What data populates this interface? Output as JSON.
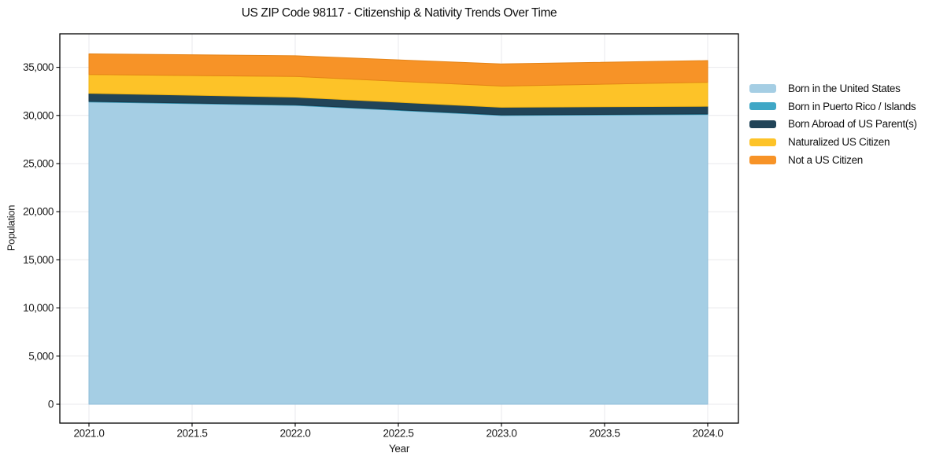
{
  "figure": {
    "title": "US ZIP Code 98117 - Citizenship & Nativity Trends Over Time",
    "xlabel": "Year",
    "ylabel": "Population"
  },
  "chart_data": {
    "type": "area",
    "stacked": true,
    "title": "US ZIP Code 98117 - Citizenship & Nativity Trends Over Time",
    "xlabel": "Year",
    "ylabel": "Population",
    "x": [
      2021,
      2022,
      2023,
      2024
    ],
    "series": [
      {
        "name": "Born in the United States",
        "values": [
          31400,
          31050,
          30000,
          30100
        ],
        "color": "#a5cee4",
        "edge_color": "#8ebcd8"
      },
      {
        "name": "Born in Puerto Rico / Islands",
        "values": [
          60,
          60,
          60,
          60
        ],
        "color": "#3fa7c6",
        "edge_color": "#3596b4"
      },
      {
        "name": "Born Abroad of US Parent(s)",
        "values": [
          840,
          790,
          790,
          790
        ],
        "color": "#214458",
        "edge_color": "#1a3849"
      },
      {
        "name": "Naturalized US Citizen",
        "values": [
          1950,
          2150,
          2200,
          2500
        ],
        "color": "#fdc328",
        "edge_color": "#f0b413"
      },
      {
        "name": "Not a US Citizen",
        "values": [
          2150,
          2150,
          2300,
          2250
        ],
        "color": "#f79327",
        "edge_color": "#e58417"
      }
    ],
    "totals": [
      36400,
      36200,
      35350,
      35700
    ],
    "xlim": [
      2020.8588,
      2024.1489
    ],
    "ylim": [
      -1960,
      38480
    ],
    "xticks": [
      2021.0,
      2021.5,
      2022.0,
      2022.5,
      2023.0,
      2023.5,
      2024.0
    ],
    "xtick_labels": [
      "2021.0",
      "2021.5",
      "2022.0",
      "2022.5",
      "2023.0",
      "2023.5",
      "2024.0"
    ],
    "yticks": [
      0,
      5000,
      10000,
      15000,
      20000,
      25000,
      30000,
      35000
    ],
    "ytick_labels": [
      "0",
      "5,000",
      "10,000",
      "15,000",
      "20,000",
      "25,000",
      "30,000",
      "35,000"
    ],
    "grid": true,
    "legend_position": "right-outside"
  },
  "colors": {
    "background": "#ffffff",
    "grid": "#e9e9ec",
    "spine": "#000000",
    "tick": "#000000",
    "text": "#1a1a1a"
  }
}
